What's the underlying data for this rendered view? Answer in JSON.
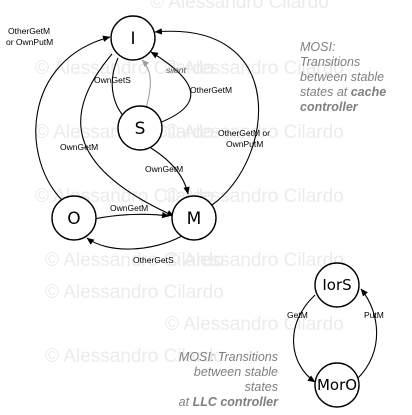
{
  "watermark": "© Alessandro Cilardo",
  "cache_caption": {
    "line1": "MOSI:",
    "line2": "Transitions",
    "line3": "between stable",
    "line4": "states at",
    "line4_bold": "cache",
    "line5_bold": "controller"
  },
  "llc_caption": {
    "line1": "MOSI: Transitions",
    "line2": "between stable states",
    "line3_pre": "at",
    "line3_bold": "LLC controller"
  },
  "cache_states": {
    "I": "I",
    "S": "S",
    "O": "O",
    "M": "M"
  },
  "llc_states": {
    "IorS": "IorS",
    "MorO": "MorO"
  },
  "edge_labels": {
    "o_to_i_line1": "OtherGetM",
    "o_to_i_line2": "or OwnPutM",
    "i_to_s": "OwnGetS",
    "silent": "silent",
    "s_to_i": "OtherGetM",
    "i_to_m": "OwnGetM",
    "m_to_i_line1": "OtherGetM or",
    "m_to_i_line2": "OwnPutM",
    "s_to_m": "OwnGetM",
    "o_to_m": "OwnGetM",
    "m_to_o": "OtherGetS",
    "llc_getm": "GetM",
    "llc_putm": "PutM"
  }
}
